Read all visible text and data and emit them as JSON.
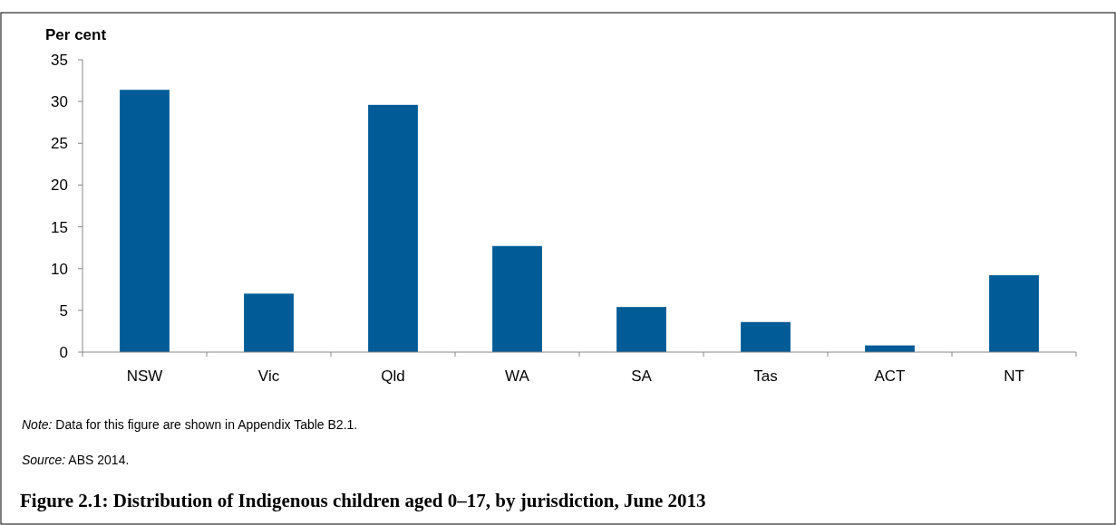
{
  "chart_data": {
    "type": "bar",
    "title": "Figure 2.1: Distribution of Indigenous children aged 0–17, by jurisdiction, June 2013",
    "ylabel": "Per cent",
    "categories": [
      "NSW",
      "Vic",
      "Qld",
      "WA",
      "SA",
      "Tas",
      "ACT",
      "NT"
    ],
    "values": [
      31.4,
      7.0,
      29.6,
      12.7,
      5.4,
      3.6,
      0.8,
      9.2
    ],
    "color": "#005b96",
    "ylim": [
      0,
      35
    ],
    "yticks": [
      0,
      5,
      10,
      15,
      20,
      25,
      30,
      35
    ],
    "grid": false,
    "annotations": [
      "Note: Data for this figure are shown in Appendix Table B2.1.",
      "Source: ABS 2014."
    ]
  }
}
